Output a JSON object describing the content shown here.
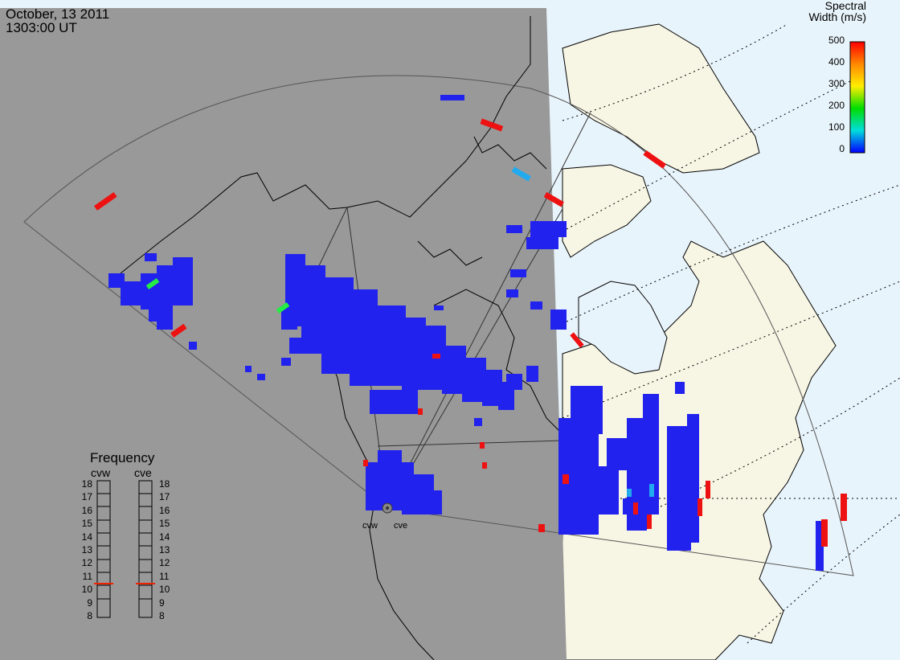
{
  "header": {
    "date": "October, 13 2011",
    "time": "1303:00 UT"
  },
  "colorbar": {
    "title_line1": "Spectral",
    "title_line2": "Width (m/s)",
    "ticks": [
      "500",
      "400",
      "300",
      "200",
      "100",
      "0"
    ],
    "colors": [
      "#ff0000",
      "#ff8800",
      "#ffff00",
      "#00dd00",
      "#00dddd",
      "#0000ff"
    ]
  },
  "frequency_panel": {
    "title": "Frequency",
    "left_label": "cvw",
    "right_label": "cve",
    "scale": [
      "18",
      "17",
      "16",
      "15",
      "14",
      "13",
      "12",
      "11",
      "10",
      "9",
      "8"
    ],
    "cvw_frequency_mhz": 10.8,
    "cve_frequency_mhz": 10.8
  },
  "radars": {
    "west": "cvw",
    "east": "cve"
  },
  "colors": {
    "night": "#999999",
    "day_land": "#f7f5e4",
    "day_ocean": "#e8f4fb",
    "scatter_low": "#2222ee",
    "scatter_high": "#ee1111"
  }
}
